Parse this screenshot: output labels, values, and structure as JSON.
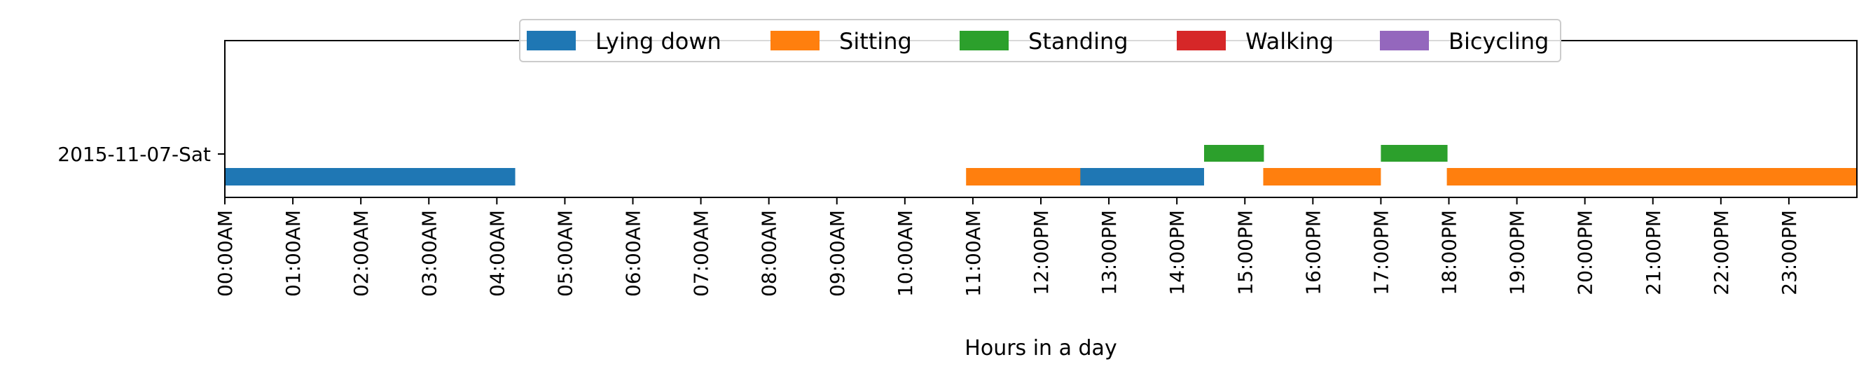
{
  "chart_data": {
    "type": "bar",
    "orientation": "horizontal-timeline",
    "title": "",
    "xlabel": "Hours in a day",
    "ylabel": "",
    "xlim": [
      0,
      24
    ],
    "grid": false,
    "legend_position": "top-center",
    "categories": [
      "2015-11-07-Sat"
    ],
    "x_ticks": [
      {
        "hour": 0,
        "label": "00:00AM"
      },
      {
        "hour": 1,
        "label": "01:00AM"
      },
      {
        "hour": 2,
        "label": "02:00AM"
      },
      {
        "hour": 3,
        "label": "03:00AM"
      },
      {
        "hour": 4,
        "label": "04:00AM"
      },
      {
        "hour": 5,
        "label": "05:00AM"
      },
      {
        "hour": 6,
        "label": "06:00AM"
      },
      {
        "hour": 7,
        "label": "07:00AM"
      },
      {
        "hour": 8,
        "label": "08:00AM"
      },
      {
        "hour": 9,
        "label": "09:00AM"
      },
      {
        "hour": 10,
        "label": "10:00AM"
      },
      {
        "hour": 11,
        "label": "11:00AM"
      },
      {
        "hour": 12,
        "label": "12:00PM"
      },
      {
        "hour": 13,
        "label": "13:00PM"
      },
      {
        "hour": 14,
        "label": "14:00PM"
      },
      {
        "hour": 15,
        "label": "15:00PM"
      },
      {
        "hour": 16,
        "label": "16:00PM"
      },
      {
        "hour": 17,
        "label": "17:00PM"
      },
      {
        "hour": 18,
        "label": "18:00PM"
      },
      {
        "hour": 19,
        "label": "19:00PM"
      },
      {
        "hour": 20,
        "label": "20:00PM"
      },
      {
        "hour": 21,
        "label": "21:00PM"
      },
      {
        "hour": 22,
        "label": "22:00PM"
      },
      {
        "hour": 23,
        "label": "23:00PM"
      }
    ],
    "series": [
      {
        "name": "Lying down",
        "color": "#1f77b4",
        "lane": "lower",
        "intervals": [
          [
            0.0,
            4.27
          ],
          [
            12.57,
            14.4
          ]
        ]
      },
      {
        "name": "Sitting",
        "color": "#ff7f0e",
        "lane": "lower",
        "intervals": [
          [
            10.9,
            12.58
          ],
          [
            15.27,
            17.0
          ],
          [
            17.97,
            24.0
          ]
        ]
      },
      {
        "name": "Standing",
        "color": "#2ca02c",
        "lane": "upper",
        "intervals": [
          [
            14.4,
            15.28
          ],
          [
            17.0,
            17.98
          ]
        ]
      },
      {
        "name": "Walking",
        "color": "#d62728",
        "lane": "upper",
        "intervals": []
      },
      {
        "name": "Bicycling",
        "color": "#9467bd",
        "lane": "upper",
        "intervals": []
      }
    ]
  }
}
